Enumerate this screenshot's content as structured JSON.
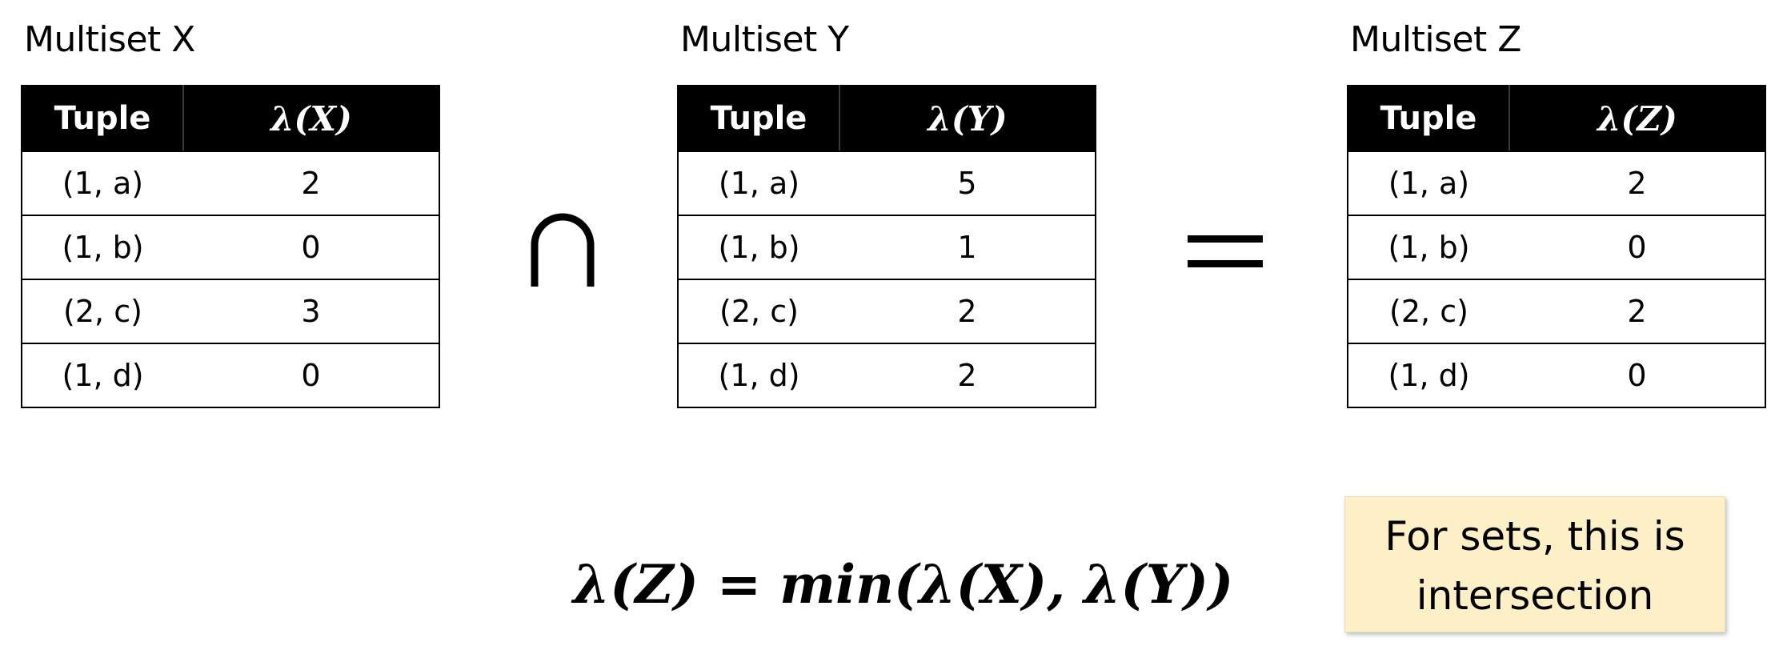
{
  "multisets": [
    {
      "title": "Multiset X",
      "headers": {
        "tuple": "Tuple",
        "lambda": "λ(X)"
      },
      "rows": [
        {
          "tuple": "(1, a)",
          "value": "2"
        },
        {
          "tuple": "(1, b)",
          "value": "0"
        },
        {
          "tuple": "(2, c)",
          "value": "3"
        },
        {
          "tuple": "(1, d)",
          "value": "0"
        }
      ]
    },
    {
      "title": "Multiset Y",
      "headers": {
        "tuple": "Tuple",
        "lambda": "λ(Y)"
      },
      "rows": [
        {
          "tuple": "(1, a)",
          "value": "5"
        },
        {
          "tuple": "(1, b)",
          "value": "1"
        },
        {
          "tuple": "(2, c)",
          "value": "2"
        },
        {
          "tuple": "(1, d)",
          "value": "2"
        }
      ]
    },
    {
      "title": "Multiset Z",
      "headers": {
        "tuple": "Tuple",
        "lambda": "λ(Z)"
      },
      "rows": [
        {
          "tuple": "(1, a)",
          "value": "2"
        },
        {
          "tuple": "(1, b)",
          "value": "0"
        },
        {
          "tuple": "(2, c)",
          "value": "2"
        },
        {
          "tuple": "(1, d)",
          "value": "0"
        }
      ]
    }
  ],
  "operators": {
    "intersect": "intersection-symbol",
    "equals": "equals-symbol"
  },
  "formula": "λ(Z) = min(λ(X), λ(Y))",
  "note": {
    "line1": "For sets, this is",
    "line2": "intersection"
  }
}
